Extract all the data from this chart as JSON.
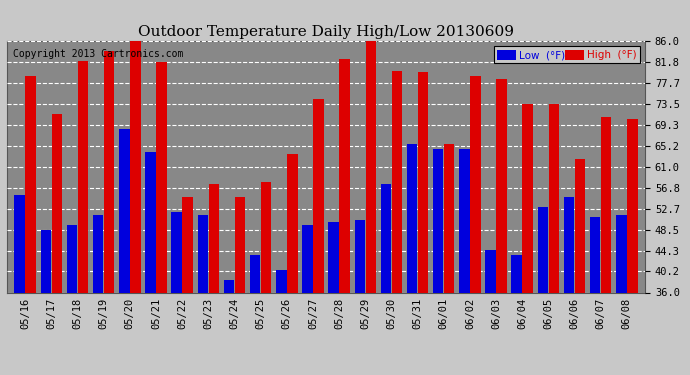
{
  "title": "Outdoor Temperature Daily High/Low 20130609",
  "copyright": "Copyright 2013 Cartronics.com",
  "legend_low": "Low  (°F)",
  "legend_high": "High  (°F)",
  "low_color": "#0000dd",
  "high_color": "#dd0000",
  "background_color": "#c8c8c8",
  "plot_bg_color": "#888888",
  "grid_color": "#ffffff",
  "ylim": [
    36.0,
    86.0
  ],
  "yticks": [
    36.0,
    40.2,
    44.3,
    48.5,
    52.7,
    56.8,
    61.0,
    65.2,
    69.3,
    73.5,
    77.7,
    81.8,
    86.0
  ],
  "categories": [
    "05/16",
    "05/17",
    "05/18",
    "05/19",
    "05/20",
    "05/21",
    "05/22",
    "05/23",
    "05/24",
    "05/25",
    "05/26",
    "05/27",
    "05/28",
    "05/29",
    "05/30",
    "05/31",
    "06/01",
    "06/02",
    "06/03",
    "06/04",
    "06/05",
    "06/06",
    "06/07",
    "06/08"
  ],
  "high_values": [
    79.0,
    71.5,
    82.0,
    84.0,
    86.0,
    81.8,
    55.0,
    57.5,
    55.0,
    58.0,
    63.5,
    74.5,
    82.5,
    86.0,
    80.0,
    79.8,
    65.5,
    79.0,
    78.5,
    73.5,
    73.5,
    62.5,
    71.0,
    70.5
  ],
  "low_values": [
    55.5,
    48.5,
    49.5,
    51.5,
    68.5,
    64.0,
    52.0,
    51.5,
    38.5,
    43.5,
    40.5,
    49.5,
    50.0,
    50.5,
    57.5,
    65.5,
    64.5,
    64.5,
    44.5,
    43.5,
    53.0,
    55.0,
    51.0,
    51.5
  ]
}
